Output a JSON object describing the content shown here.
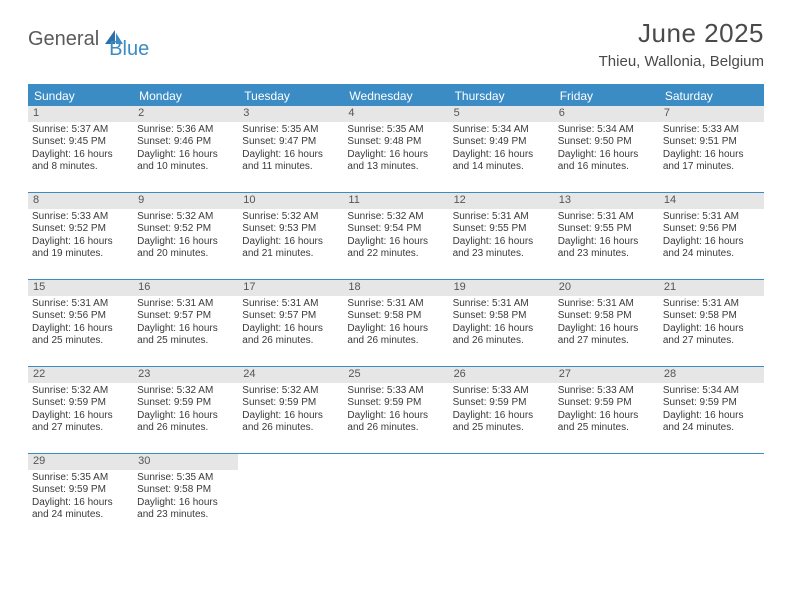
{
  "brand": {
    "text1": "General",
    "text2": "Blue"
  },
  "title": "June 2025",
  "location": "Thieu, Wallonia, Belgium",
  "colors": {
    "accent": "#3b8bc4",
    "header_text": "#ffffff",
    "daynum_bg": "#e6e6e6",
    "body_text": "#3a3a3a",
    "title_text": "#4a4a4a"
  },
  "fonts": {
    "title_size": 26,
    "location_size": 15,
    "weekday_size": 12,
    "cell_size": 10
  },
  "weekdays": [
    "Sunday",
    "Monday",
    "Tuesday",
    "Wednesday",
    "Thursday",
    "Friday",
    "Saturday"
  ],
  "weeks": [
    [
      {
        "n": "1",
        "sunrise": "5:37 AM",
        "sunset": "9:45 PM",
        "day_h": 16,
        "day_m": 8
      },
      {
        "n": "2",
        "sunrise": "5:36 AM",
        "sunset": "9:46 PM",
        "day_h": 16,
        "day_m": 10
      },
      {
        "n": "3",
        "sunrise": "5:35 AM",
        "sunset": "9:47 PM",
        "day_h": 16,
        "day_m": 11
      },
      {
        "n": "4",
        "sunrise": "5:35 AM",
        "sunset": "9:48 PM",
        "day_h": 16,
        "day_m": 13
      },
      {
        "n": "5",
        "sunrise": "5:34 AM",
        "sunset": "9:49 PM",
        "day_h": 16,
        "day_m": 14
      },
      {
        "n": "6",
        "sunrise": "5:34 AM",
        "sunset": "9:50 PM",
        "day_h": 16,
        "day_m": 16
      },
      {
        "n": "7",
        "sunrise": "5:33 AM",
        "sunset": "9:51 PM",
        "day_h": 16,
        "day_m": 17
      }
    ],
    [
      {
        "n": "8",
        "sunrise": "5:33 AM",
        "sunset": "9:52 PM",
        "day_h": 16,
        "day_m": 19
      },
      {
        "n": "9",
        "sunrise": "5:32 AM",
        "sunset": "9:52 PM",
        "day_h": 16,
        "day_m": 20
      },
      {
        "n": "10",
        "sunrise": "5:32 AM",
        "sunset": "9:53 PM",
        "day_h": 16,
        "day_m": 21
      },
      {
        "n": "11",
        "sunrise": "5:32 AM",
        "sunset": "9:54 PM",
        "day_h": 16,
        "day_m": 22
      },
      {
        "n": "12",
        "sunrise": "5:31 AM",
        "sunset": "9:55 PM",
        "day_h": 16,
        "day_m": 23
      },
      {
        "n": "13",
        "sunrise": "5:31 AM",
        "sunset": "9:55 PM",
        "day_h": 16,
        "day_m": 23
      },
      {
        "n": "14",
        "sunrise": "5:31 AM",
        "sunset": "9:56 PM",
        "day_h": 16,
        "day_m": 24
      }
    ],
    [
      {
        "n": "15",
        "sunrise": "5:31 AM",
        "sunset": "9:56 PM",
        "day_h": 16,
        "day_m": 25
      },
      {
        "n": "16",
        "sunrise": "5:31 AM",
        "sunset": "9:57 PM",
        "day_h": 16,
        "day_m": 25
      },
      {
        "n": "17",
        "sunrise": "5:31 AM",
        "sunset": "9:57 PM",
        "day_h": 16,
        "day_m": 26
      },
      {
        "n": "18",
        "sunrise": "5:31 AM",
        "sunset": "9:58 PM",
        "day_h": 16,
        "day_m": 26
      },
      {
        "n": "19",
        "sunrise": "5:31 AM",
        "sunset": "9:58 PM",
        "day_h": 16,
        "day_m": 26
      },
      {
        "n": "20",
        "sunrise": "5:31 AM",
        "sunset": "9:58 PM",
        "day_h": 16,
        "day_m": 27
      },
      {
        "n": "21",
        "sunrise": "5:31 AM",
        "sunset": "9:58 PM",
        "day_h": 16,
        "day_m": 27
      }
    ],
    [
      {
        "n": "22",
        "sunrise": "5:32 AM",
        "sunset": "9:59 PM",
        "day_h": 16,
        "day_m": 27
      },
      {
        "n": "23",
        "sunrise": "5:32 AM",
        "sunset": "9:59 PM",
        "day_h": 16,
        "day_m": 26
      },
      {
        "n": "24",
        "sunrise": "5:32 AM",
        "sunset": "9:59 PM",
        "day_h": 16,
        "day_m": 26
      },
      {
        "n": "25",
        "sunrise": "5:33 AM",
        "sunset": "9:59 PM",
        "day_h": 16,
        "day_m": 26
      },
      {
        "n": "26",
        "sunrise": "5:33 AM",
        "sunset": "9:59 PM",
        "day_h": 16,
        "day_m": 25
      },
      {
        "n": "27",
        "sunrise": "5:33 AM",
        "sunset": "9:59 PM",
        "day_h": 16,
        "day_m": 25
      },
      {
        "n": "28",
        "sunrise": "5:34 AM",
        "sunset": "9:59 PM",
        "day_h": 16,
        "day_m": 24
      }
    ],
    [
      {
        "n": "29",
        "sunrise": "5:35 AM",
        "sunset": "9:59 PM",
        "day_h": 16,
        "day_m": 24
      },
      {
        "n": "30",
        "sunrise": "5:35 AM",
        "sunset": "9:58 PM",
        "day_h": 16,
        "day_m": 23
      },
      null,
      null,
      null,
      null,
      null
    ]
  ],
  "labels": {
    "sunrise_prefix": "Sunrise: ",
    "sunset_prefix": "Sunset: ",
    "daylight_prefix": "Daylight: ",
    "hours_word": " hours and ",
    "minutes_word": " minutes."
  }
}
